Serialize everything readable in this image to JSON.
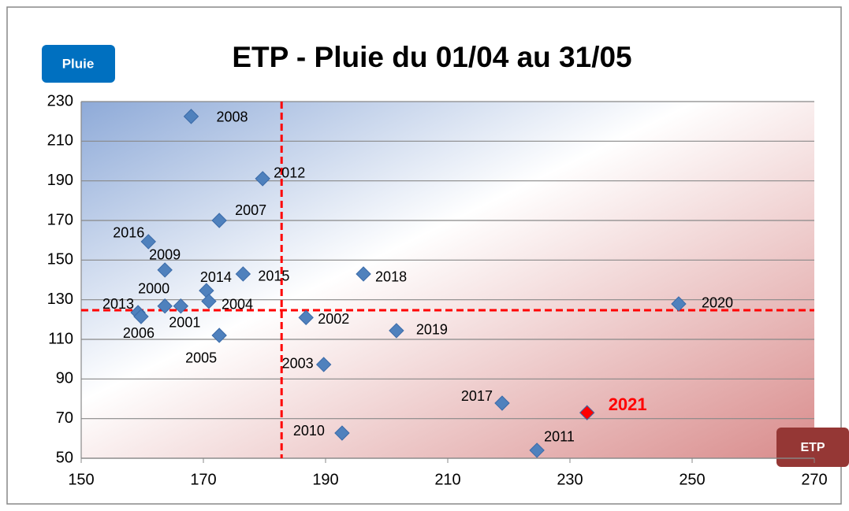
{
  "chart_data": {
    "type": "scatter",
    "title": "ETP - Pluie du 01/04 au 31/05",
    "y_label": "Pluie",
    "x_label": "ETP",
    "xlim": [
      150,
      270
    ],
    "xticks": [
      150,
      170,
      190,
      210,
      230,
      250,
      270
    ],
    "ylim": [
      50,
      230
    ],
    "yticks": [
      50,
      70,
      90,
      110,
      130,
      150,
      170,
      190,
      210,
      230
    ],
    "grid": true,
    "ref_lines": {
      "x": 182.8,
      "y": 124.7,
      "color": "#ff0000"
    },
    "series": [
      {
        "color": "#4f81bd",
        "labels": [
          "2008",
          "2012",
          "2007",
          "2016",
          "2009",
          "2014",
          "2015",
          "2000",
          "2004",
          "2013",
          "2006",
          "2001",
          "2005",
          "2002",
          "2018",
          "2019",
          "2003",
          "2010",
          "2017",
          "2011",
          "2020"
        ],
        "x": [
          168,
          179.7,
          172.6,
          161,
          163.7,
          170.5,
          176.5,
          163.7,
          170.9,
          159.3,
          159.8,
          166.3,
          172.6,
          186.8,
          196.2,
          201.6,
          189.7,
          192.7,
          218.9,
          224.6,
          247.8
        ],
        "values": [
          222.5,
          191.1,
          170,
          159.3,
          145,
          134.6,
          143,
          126.8,
          129.2,
          123.5,
          121.5,
          126.8,
          112,
          121,
          143,
          114.4,
          97.3,
          62.7,
          77.8,
          54,
          127.9
        ]
      },
      {
        "color": "#ff0000",
        "labels": [
          "2021"
        ],
        "x": [
          232.8
        ],
        "values": [
          73
        ]
      }
    ]
  }
}
